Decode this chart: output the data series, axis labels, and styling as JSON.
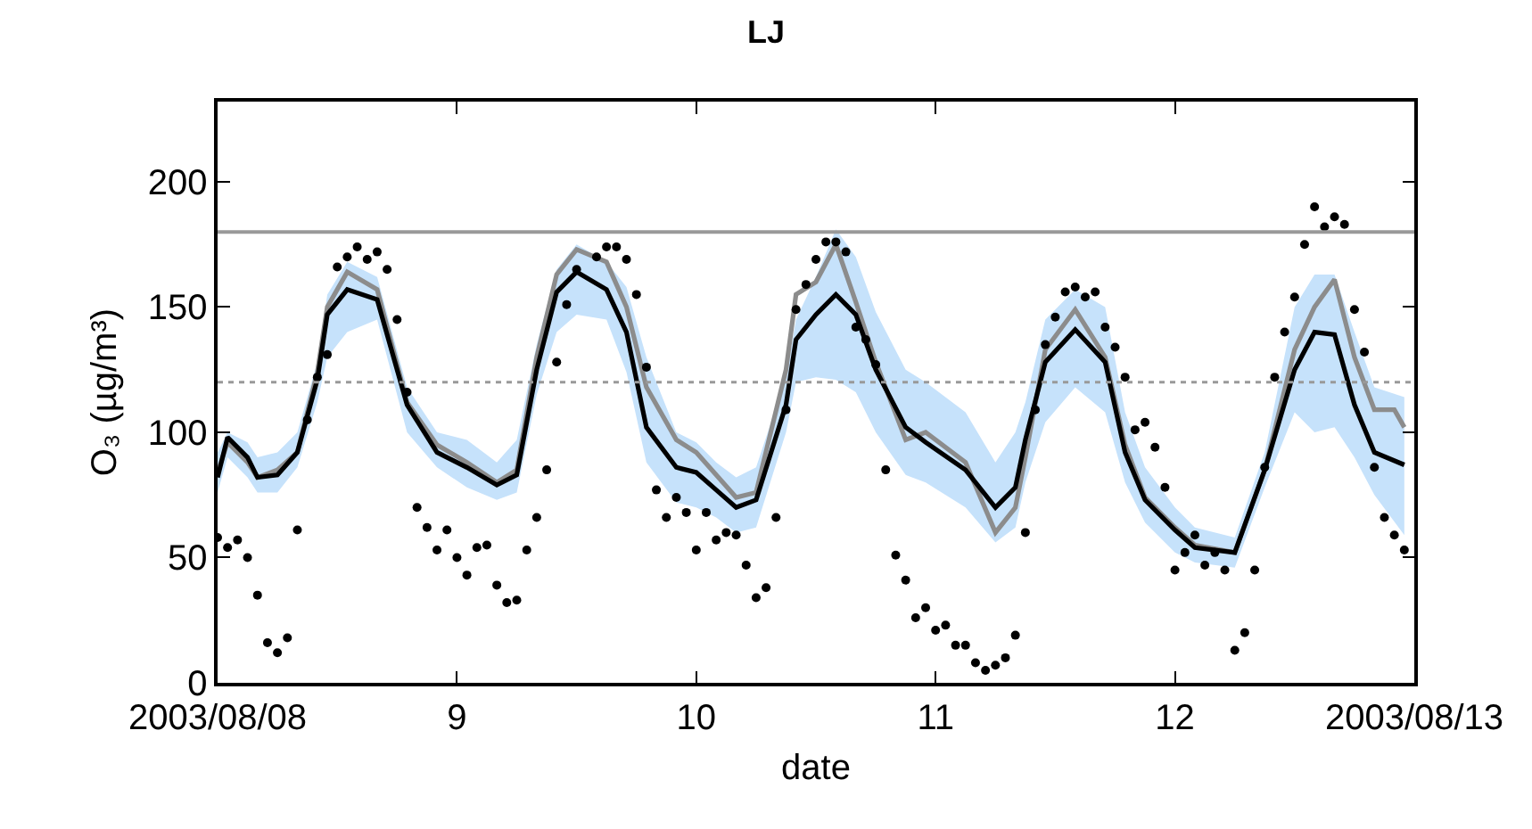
{
  "chart_data": {
    "type": "line",
    "title": "LJ",
    "xlabel": "date",
    "ylabel": "O₃ (µg/m³)",
    "xlim": [
      "2003-08-08T00:00",
      "2003-08-13T00:00"
    ],
    "xticks": [
      {
        "value": "2003-08-08",
        "label": "2003/08/08"
      },
      {
        "value": "2003-08-09",
        "label": "9"
      },
      {
        "value": "2003-08-10",
        "label": "10"
      },
      {
        "value": "2003-08-11",
        "label": "11"
      },
      {
        "value": "2003-08-12",
        "label": "12"
      },
      {
        "value": "2003-08-13",
        "label": "2003/08/13"
      }
    ],
    "ylim": [
      0,
      232
    ],
    "yticks": [
      0,
      50,
      100,
      150,
      200
    ],
    "grid": false,
    "ref_lines": [
      {
        "axis": "y",
        "value": 180,
        "color": "#999999",
        "line_style": "solid"
      },
      {
        "axis": "y",
        "value": 120,
        "color": "#999999",
        "line_style": "dotted"
      }
    ],
    "x": [
      "2003-08-08T00:00",
      "2003-08-08T01:00",
      "2003-08-08T02:00",
      "2003-08-08T03:00",
      "2003-08-08T04:00",
      "2003-08-08T05:00",
      "2003-08-08T06:00",
      "2003-08-08T07:00",
      "2003-08-08T08:00",
      "2003-08-08T09:00",
      "2003-08-08T10:00",
      "2003-08-08T11:00",
      "2003-08-08T12:00",
      "2003-08-08T13:00",
      "2003-08-08T14:00",
      "2003-08-08T15:00",
      "2003-08-08T16:00",
      "2003-08-08T17:00",
      "2003-08-08T18:00",
      "2003-08-08T19:00",
      "2003-08-08T20:00",
      "2003-08-08T21:00",
      "2003-08-08T22:00",
      "2003-08-08T23:00",
      "2003-08-09T00:00",
      "2003-08-09T01:00",
      "2003-08-09T02:00",
      "2003-08-09T03:00",
      "2003-08-09T04:00",
      "2003-08-09T05:00",
      "2003-08-09T06:00",
      "2003-08-09T07:00",
      "2003-08-09T08:00",
      "2003-08-09T09:00",
      "2003-08-09T10:00",
      "2003-08-09T11:00",
      "2003-08-09T12:00",
      "2003-08-09T13:00",
      "2003-08-09T14:00",
      "2003-08-09T15:00",
      "2003-08-09T16:00",
      "2003-08-09T17:00",
      "2003-08-09T18:00",
      "2003-08-09T19:00",
      "2003-08-09T20:00",
      "2003-08-09T21:00",
      "2003-08-09T22:00",
      "2003-08-09T23:00",
      "2003-08-10T00:00",
      "2003-08-10T01:00",
      "2003-08-10T02:00",
      "2003-08-10T03:00",
      "2003-08-10T04:00",
      "2003-08-10T05:00",
      "2003-08-10T06:00",
      "2003-08-10T07:00",
      "2003-08-10T08:00",
      "2003-08-10T09:00",
      "2003-08-10T10:00",
      "2003-08-10T11:00",
      "2003-08-10T12:00",
      "2003-08-10T13:00",
      "2003-08-10T14:00",
      "2003-08-10T15:00",
      "2003-08-10T16:00",
      "2003-08-10T17:00",
      "2003-08-10T18:00",
      "2003-08-10T19:00",
      "2003-08-10T20:00",
      "2003-08-10T21:00",
      "2003-08-10T22:00",
      "2003-08-10T23:00",
      "2003-08-11T00:00",
      "2003-08-11T01:00",
      "2003-08-11T02:00",
      "2003-08-11T03:00",
      "2003-08-11T04:00",
      "2003-08-11T05:00",
      "2003-08-11T06:00",
      "2003-08-11T07:00",
      "2003-08-11T08:00",
      "2003-08-11T09:00",
      "2003-08-11T10:00",
      "2003-08-11T11:00",
      "2003-08-11T12:00",
      "2003-08-11T13:00",
      "2003-08-11T14:00",
      "2003-08-11T15:00",
      "2003-08-11T16:00",
      "2003-08-11T17:00",
      "2003-08-11T18:00",
      "2003-08-11T19:00",
      "2003-08-11T20:00",
      "2003-08-11T21:00",
      "2003-08-11T22:00",
      "2003-08-11T23:00",
      "2003-08-12T00:00",
      "2003-08-12T01:00",
      "2003-08-12T02:00",
      "2003-08-12T03:00",
      "2003-08-12T04:00",
      "2003-08-12T05:00",
      "2003-08-12T06:00",
      "2003-08-12T07:00",
      "2003-08-12T08:00",
      "2003-08-12T09:00",
      "2003-08-12T10:00",
      "2003-08-12T11:00",
      "2003-08-12T12:00",
      "2003-08-12T13:00",
      "2003-08-12T14:00",
      "2003-08-12T15:00",
      "2003-08-12T16:00",
      "2003-08-12T17:00",
      "2003-08-12T18:00",
      "2003-08-12T19:00",
      "2003-08-12T20:00",
      "2003-08-12T21:00",
      "2003-08-12T22:00",
      "2003-08-12T23:00"
    ],
    "series": [
      {
        "color": "#000000",
        "x": [
          "2003-08-08T00:00",
          "2003-08-08T01:00",
          "2003-08-08T03:00",
          "2003-08-08T04:00",
          "2003-08-08T06:00",
          "2003-08-08T08:00",
          "2003-08-08T10:00",
          "2003-08-08T11:00",
          "2003-08-08T13:00",
          "2003-08-08T16:00",
          "2003-08-08T19:00",
          "2003-08-08T22:00",
          "2003-08-09T01:00",
          "2003-08-09T04:00",
          "2003-08-09T06:00",
          "2003-08-09T08:00",
          "2003-08-09T10:00",
          "2003-08-09T12:00",
          "2003-08-09T15:00",
          "2003-08-09T17:00",
          "2003-08-09T19:00",
          "2003-08-09T22:00",
          "2003-08-10T00:00",
          "2003-08-10T02:00",
          "2003-08-10T04:00",
          "2003-08-10T06:00",
          "2003-08-10T09:00",
          "2003-08-10T10:00",
          "2003-08-10T12:00",
          "2003-08-10T14:00",
          "2003-08-10T16:00",
          "2003-08-10T18:00",
          "2003-08-10T21:00",
          "2003-08-10T23:00",
          "2003-08-11T03:00",
          "2003-08-11T06:00",
          "2003-08-11T08:00",
          "2003-08-11T09:00",
          "2003-08-11T11:00",
          "2003-08-11T14:00",
          "2003-08-11T17:00",
          "2003-08-11T19:00",
          "2003-08-11T21:00",
          "2003-08-12T00:00",
          "2003-08-12T02:00",
          "2003-08-12T06:00",
          "2003-08-12T09:00",
          "2003-08-12T12:00",
          "2003-08-12T14:00",
          "2003-08-12T16:00",
          "2003-08-12T18:00",
          "2003-08-12T20:00",
          "2003-08-12T23:00"
        ],
        "values": [
          82,
          98,
          90,
          82,
          83,
          92,
          121,
          147,
          157,
          153,
          111,
          92,
          86,
          79,
          83,
          125,
          156,
          164,
          157,
          140,
          102,
          86,
          84,
          77,
          70,
          73,
          111,
          137,
          147,
          155,
          147,
          125,
          102,
          96,
          85,
          70,
          78,
          97,
          128,
          141,
          128,
          92,
          73,
          61,
          54,
          52,
          85,
          125,
          140,
          139,
          111,
          92,
          87
        ],
        "lower": [
          76,
          90,
          82,
          76,
          76,
          86,
          112,
          130,
          140,
          145,
          100,
          86,
          78,
          73,
          76,
          115,
          140,
          147,
          145,
          124,
          88,
          72,
          70,
          66,
          60,
          62,
          100,
          120,
          122,
          121,
          116,
          100,
          83,
          80,
          70,
          56,
          62,
          80,
          104,
          118,
          108,
          80,
          64,
          52,
          48,
          46,
          78,
          108,
          100,
          102,
          90,
          75,
          59
        ],
        "upper": [
          92,
          100,
          96,
          90,
          92,
          100,
          128,
          155,
          168,
          162,
          118,
          100,
          97,
          88,
          97,
          135,
          165,
          175,
          168,
          158,
          130,
          100,
          96,
          88,
          82,
          86,
          122,
          145,
          162,
          181,
          170,
          148,
          125,
          120,
          108,
          88,
          100,
          112,
          145,
          157,
          150,
          108,
          86,
          70,
          62,
          58,
          92,
          150,
          163,
          163,
          140,
          118,
          114
        ]
      },
      {
        "color": "#8c8c8c",
        "x": [
          "2003-08-08T00:00",
          "2003-08-08T01:00",
          "2003-08-08T03:00",
          "2003-08-08T04:00",
          "2003-08-08T06:00",
          "2003-08-08T08:00",
          "2003-08-08T10:00",
          "2003-08-08T11:00",
          "2003-08-08T13:00",
          "2003-08-08T16:00",
          "2003-08-08T19:00",
          "2003-08-08T22:00",
          "2003-08-09T01:00",
          "2003-08-09T04:00",
          "2003-08-09T06:00",
          "2003-08-09T08:00",
          "2003-08-09T10:00",
          "2003-08-09T12:00",
          "2003-08-09T15:00",
          "2003-08-09T17:00",
          "2003-08-09T19:00",
          "2003-08-09T22:00",
          "2003-08-10T00:00",
          "2003-08-10T02:00",
          "2003-08-10T04:00",
          "2003-08-10T06:00",
          "2003-08-10T09:00",
          "2003-08-10T10:00",
          "2003-08-10T12:00",
          "2003-08-10T14:00",
          "2003-08-10T16:00",
          "2003-08-10T18:00",
          "2003-08-10T21:00",
          "2003-08-10T23:00",
          "2003-08-11T03:00",
          "2003-08-11T06:00",
          "2003-08-11T08:00",
          "2003-08-11T09:00",
          "2003-08-11T11:00",
          "2003-08-11T14:00",
          "2003-08-11T17:00",
          "2003-08-11T19:00",
          "2003-08-11T21:00",
          "2003-08-12T00:00",
          "2003-08-12T02:00",
          "2003-08-12T06:00",
          "2003-08-12T09:00",
          "2003-08-12T12:00",
          "2003-08-12T14:00",
          "2003-08-12T16:00",
          "2003-08-12T18:00",
          "2003-08-12T20:00",
          "2003-08-12T22:00",
          "2003-08-12T23:00"
        ],
        "values": [
          84,
          96,
          88,
          82,
          85,
          92,
          124,
          150,
          164,
          157,
          112,
          95,
          88,
          80,
          85,
          130,
          163,
          173,
          168,
          150,
          118,
          97,
          92,
          83,
          74,
          76,
          125,
          155,
          160,
          175,
          152,
          128,
          97,
          100,
          88,
          60,
          70,
          90,
          133,
          149,
          130,
          95,
          74,
          62,
          55,
          52,
          85,
          133,
          150,
          161,
          130,
          109,
          109,
          102
        ]
      },
      {
        "type": "scatter",
        "color": "#000000",
        "marker": "circle",
        "values": [
          58,
          54,
          57,
          50,
          35,
          16,
          12,
          18,
          61,
          105,
          122,
          131,
          166,
          170,
          174,
          169,
          172,
          165,
          145,
          116,
          70,
          62,
          53,
          61,
          50,
          43,
          54,
          55,
          39,
          32,
          33,
          53,
          66,
          85,
          128,
          151,
          165,
          null,
          170,
          174,
          174,
          169,
          155,
          126,
          77,
          66,
          74,
          68,
          53,
          68,
          57,
          60,
          59,
          47,
          34,
          38,
          66,
          109,
          149,
          159,
          169,
          176,
          176,
          172,
          142,
          137,
          127,
          85,
          51,
          41,
          26,
          30,
          21,
          23,
          15,
          15,
          8,
          5,
          7,
          10,
          19,
          60,
          109,
          135,
          146,
          156,
          158,
          154,
          156,
          142,
          134,
          122,
          101,
          104,
          94,
          78,
          45,
          52,
          59,
          47,
          52,
          45,
          13,
          20,
          45,
          86,
          122,
          140,
          154,
          175,
          190,
          182,
          186,
          183,
          149,
          132,
          86,
          66,
          59,
          53
        ]
      }
    ]
  }
}
